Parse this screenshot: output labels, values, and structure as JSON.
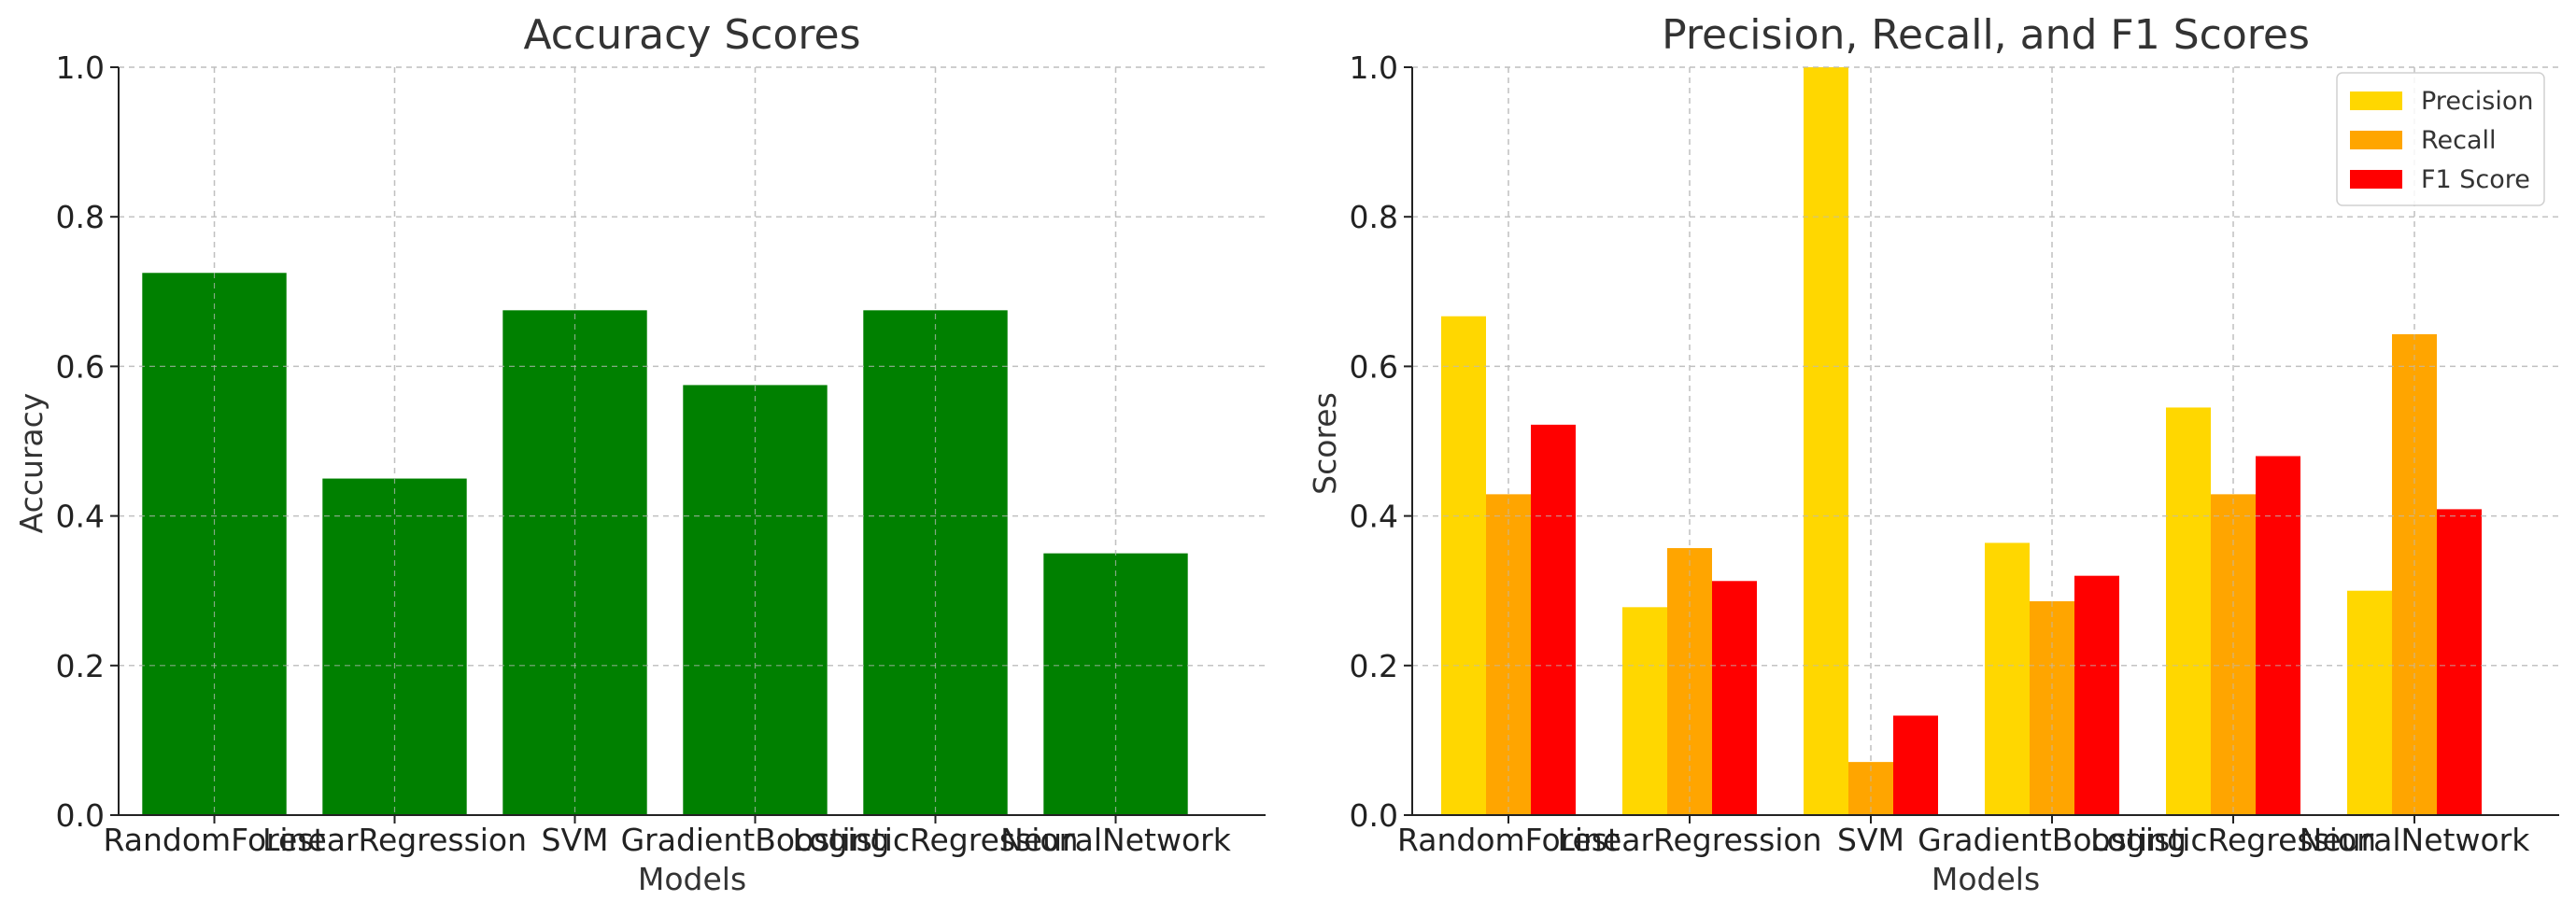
{
  "chart_data": [
    {
      "type": "bar",
      "title": "Accuracy Scores",
      "xlabel": "Models",
      "ylabel": "Accuracy",
      "categories": [
        "RandomForest",
        "LinearRegression",
        "SVM",
        "GradientBoosting",
        "LogisticRegression",
        "NeuralNetwork"
      ],
      "series": [
        {
          "values": [
            0.725,
            0.45,
            0.675,
            0.575,
            0.675,
            0.35
          ],
          "color": "#008000"
        }
      ],
      "ylim": [
        0,
        1.0
      ],
      "yticks": [
        "0.0",
        "0.2",
        "0.4",
        "0.6",
        "0.8",
        "1.0"
      ],
      "grid": true
    },
    {
      "type": "bar",
      "title": "Precision, Recall, and F1 Scores",
      "xlabel": "Models",
      "ylabel": "Scores",
      "categories": [
        "RandomForest",
        "LinearRegression",
        "SVM",
        "GradientBoosting",
        "LogisticRegression",
        "NeuralNetwork"
      ],
      "series": [
        {
          "name": "Precision",
          "values": [
            0.667,
            0.278,
            1.0,
            0.364,
            0.545,
            0.3
          ],
          "color": "#FFD700"
        },
        {
          "name": "Recall",
          "values": [
            0.429,
            0.357,
            0.071,
            0.286,
            0.429,
            0.643
          ],
          "color": "#FFA500"
        },
        {
          "name": "F1 Score",
          "values": [
            0.522,
            0.313,
            0.133,
            0.32,
            0.48,
            0.409
          ],
          "color": "#FF0000"
        }
      ],
      "ylim": [
        0,
        1.0
      ],
      "yticks": [
        "0.0",
        "0.2",
        "0.4",
        "0.6",
        "0.8",
        "1.0"
      ],
      "grid": true,
      "legend": "top-right"
    }
  ]
}
